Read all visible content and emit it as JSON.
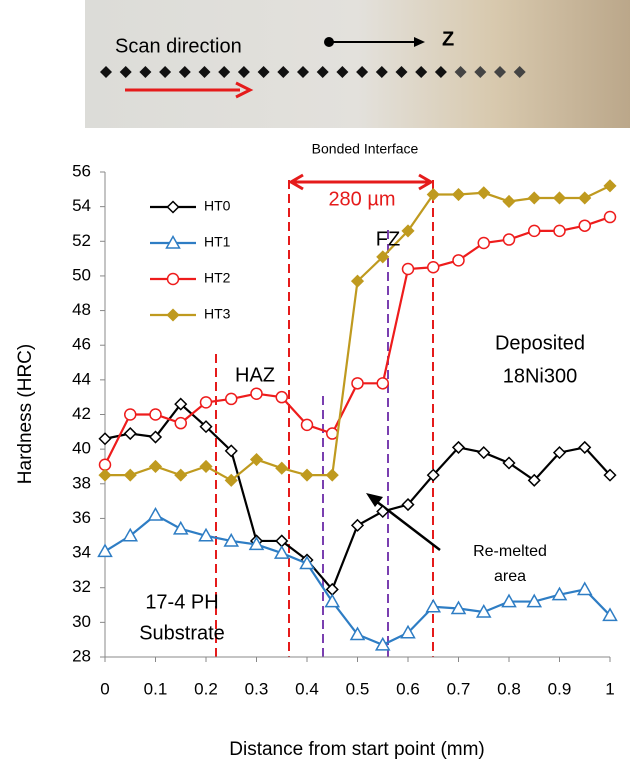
{
  "chart_data": {
    "type": "line",
    "x_label": "Distance from start point (mm)",
    "y_label": "Hardness (HRC)",
    "x": [
      0,
      0.05,
      0.1,
      0.15,
      0.2,
      0.25,
      0.3,
      0.35,
      0.4,
      0.45,
      0.5,
      0.55,
      0.6,
      0.65,
      0.7,
      0.75,
      0.8,
      0.85,
      0.9,
      0.95,
      1
    ],
    "series": [
      {
        "name": "HT0",
        "color": "#000000",
        "marker": "diamond-open",
        "values": [
          40.6,
          40.9,
          40.7,
          42.6,
          41.3,
          39.9,
          34.7,
          34.7,
          33.6,
          31.9,
          35.6,
          36.4,
          36.8,
          38.5,
          40.1,
          39.8,
          39.2,
          38.2,
          39.8,
          40.1,
          38.5
        ]
      },
      {
        "name": "HT1",
        "color": "#2e7dc4",
        "marker": "triangle-open",
        "values": [
          34.1,
          35.0,
          36.2,
          35.4,
          35.0,
          34.7,
          34.5,
          34.0,
          33.4,
          31.2,
          29.3,
          28.7,
          29.4,
          30.9,
          30.8,
          30.6,
          31.2,
          31.2,
          31.6,
          31.9,
          30.4
        ]
      },
      {
        "name": "HT2",
        "color": "#ee1c1c",
        "marker": "circle-open",
        "values": [
          39.1,
          42.0,
          42.0,
          41.5,
          42.7,
          42.9,
          43.2,
          43.0,
          41.4,
          40.9,
          43.8,
          43.8,
          50.4,
          50.5,
          50.9,
          51.9,
          52.1,
          52.6,
          52.6,
          52.9,
          53.4
        ]
      },
      {
        "name": "HT3",
        "color": "#bf9a1f",
        "marker": "diamond-filled",
        "values": [
          38.5,
          38.5,
          39.0,
          38.5,
          39.0,
          38.2,
          39.4,
          38.9,
          38.5,
          38.5,
          49.7,
          51.1,
          52.6,
          54.7,
          54.7,
          54.8,
          54.3,
          54.5,
          54.5,
          54.5,
          55.2
        ]
      }
    ],
    "xlim": [
      0,
      1
    ],
    "xticks": [
      0,
      0.1,
      0.2,
      0.3,
      0.4,
      0.5,
      0.6,
      0.7,
      0.8,
      0.9,
      1
    ],
    "ylim": [
      28,
      56
    ],
    "yticks": [
      28,
      30,
      32,
      34,
      36,
      38,
      40,
      42,
      44,
      46,
      48,
      50,
      52,
      54,
      56
    ],
    "grid": false,
    "annotations": [
      [
        "Scan direction"
      ],
      [
        "Z"
      ],
      [
        "Bonded Interface"
      ],
      [
        "280 µm"
      ],
      [
        "FZ"
      ],
      [
        "HAZ"
      ],
      [
        "Deposited",
        "18Ni300"
      ],
      [
        "Re-melted",
        "area"
      ],
      [
        "17-4 PH",
        "Substrate"
      ]
    ]
  }
}
